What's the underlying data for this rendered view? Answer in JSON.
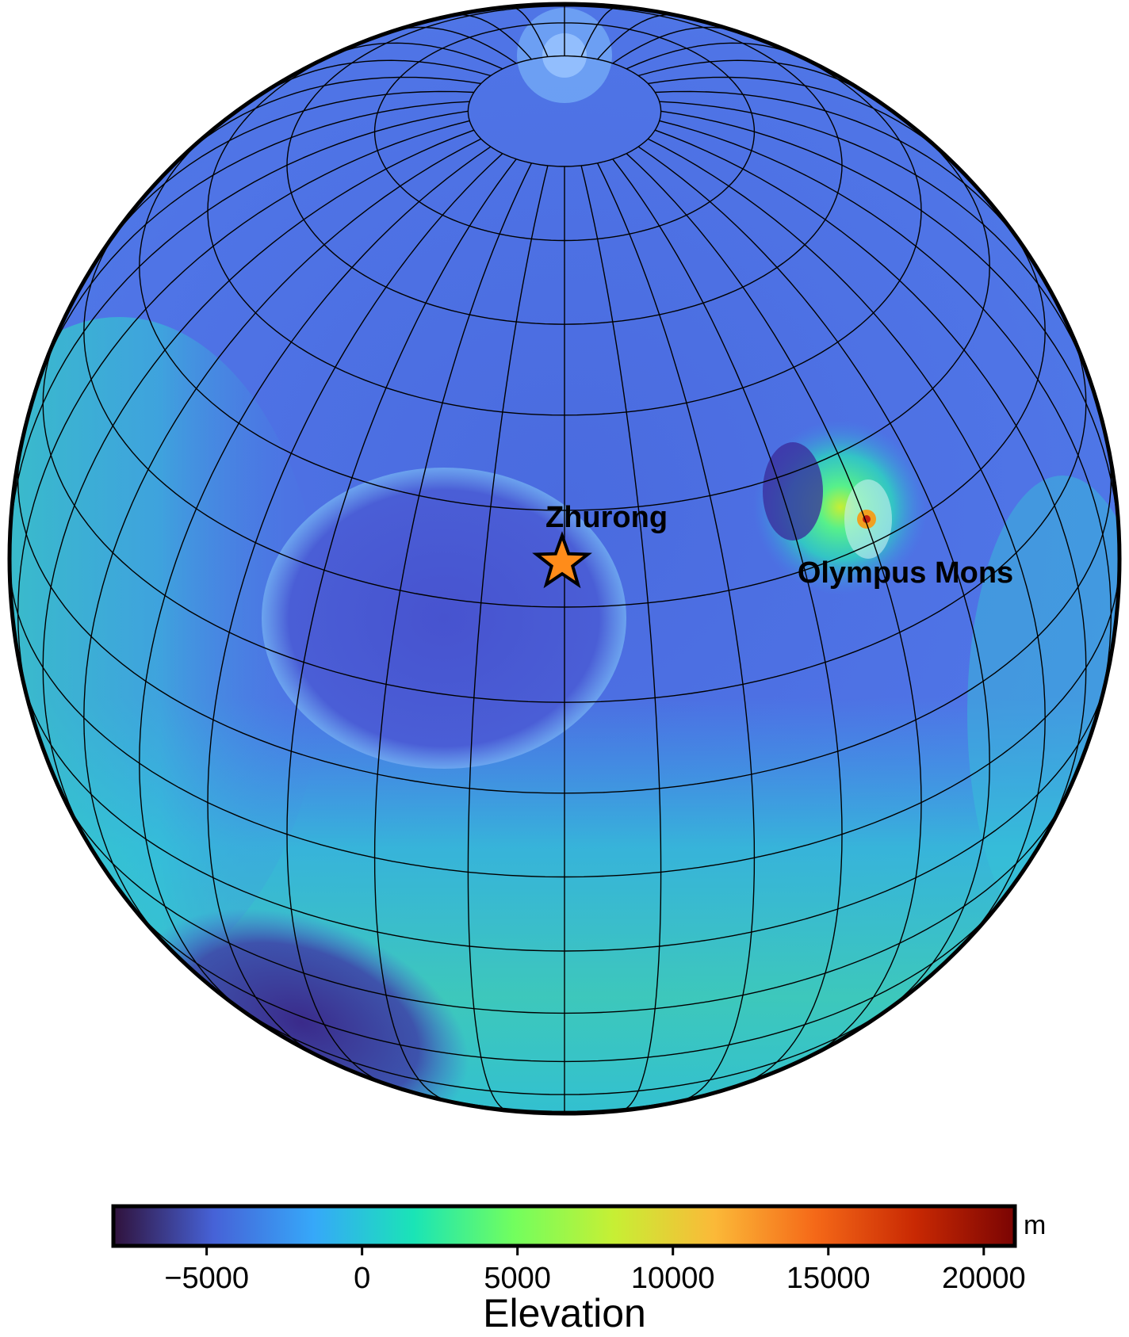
{
  "map": {
    "projection": "orthographic",
    "graticule": true,
    "markers": [
      {
        "name": "Zhurong",
        "label": "Zhurong",
        "symbol": "star",
        "color": "#ff8c1a"
      },
      {
        "name": "Olympus Mons",
        "label": "Olympus Mons",
        "symbol": "none",
        "color": "#000000"
      }
    ]
  },
  "colorbar": {
    "title": "Elevation",
    "unit": "m",
    "range": [
      -8000,
      21000
    ],
    "ticks": [
      {
        "value": -5000,
        "label": "−5000"
      },
      {
        "value": 0,
        "label": "0"
      },
      {
        "value": 5000,
        "label": "5000"
      },
      {
        "value": 10000,
        "label": "10000"
      },
      {
        "value": 15000,
        "label": "15000"
      },
      {
        "value": 20000,
        "label": "20000"
      }
    ],
    "colormap": "turbo",
    "colormap_stops": [
      "#30123b",
      "#4662d7",
      "#36a8f9",
      "#1ae4b6",
      "#72fe5e",
      "#c7ef34",
      "#fbb938",
      "#f56918",
      "#c92903",
      "#7a0403"
    ]
  }
}
